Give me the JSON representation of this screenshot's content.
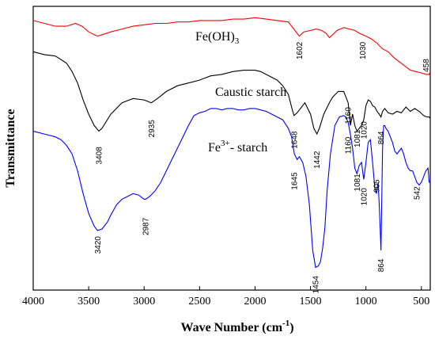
{
  "chart_data": {
    "type": "line",
    "xlabel": "Wave Number (cm",
    "xlabel_sup": "-1",
    "xlabel_close": ")",
    "ylabel": "Transmittance",
    "xlim": [
      4000,
      420
    ],
    "x_reversed": true,
    "x_ticks": [
      4000,
      3500,
      3000,
      2500,
      2000,
      1500,
      1000,
      500
    ],
    "grid": false,
    "series": [
      {
        "name": "Fe(OH)3",
        "label_main": "Fe(OH)",
        "label_sub": "3",
        "color": "#ff0000",
        "x": [
          4000,
          3900,
          3800,
          3700,
          3620,
          3560,
          3500,
          3450,
          3420,
          3380,
          3300,
          3200,
          3100,
          3000,
          2900,
          2800,
          2700,
          2600,
          2500,
          2400,
          2300,
          2200,
          2100,
          2000,
          1900,
          1800,
          1700,
          1650,
          1602,
          1560,
          1500,
          1450,
          1400,
          1360,
          1330,
          1300,
          1260,
          1200,
          1150,
          1100,
          1060,
          1030,
          1000,
          950,
          900,
          850,
          800,
          750,
          700,
          650,
          600,
          550,
          500,
          458,
          430,
          420
        ],
        "y": [
          95,
          94,
          93,
          93,
          94,
          93,
          91,
          90,
          89.5,
          90,
          91,
          92,
          93,
          93.5,
          94,
          94,
          94.5,
          94.5,
          95,
          95,
          95,
          95.5,
          95.5,
          96,
          95.5,
          95,
          94.5,
          92,
          89.5,
          91,
          91.5,
          92,
          91.5,
          90.5,
          89,
          90,
          91.5,
          92.5,
          92,
          91.5,
          90.5,
          90,
          89.5,
          88.5,
          87,
          85,
          84,
          82,
          80.5,
          79,
          77.5,
          77,
          76.5,
          76,
          76,
          77
        ]
      },
      {
        "name": "Caustic starch",
        "label_main": "Caustic starch",
        "color": "#000000",
        "x": [
          4000,
          3900,
          3800,
          3700,
          3650,
          3600,
          3550,
          3500,
          3450,
          3408,
          3380,
          3300,
          3200,
          3100,
          3000,
          2935,
          2880,
          2800,
          2700,
          2600,
          2500,
          2400,
          2300,
          2200,
          2100,
          2000,
          1950,
          1900,
          1850,
          1800,
          1750,
          1700,
          1660,
          1648,
          1620,
          1600,
          1550,
          1500,
          1470,
          1442,
          1420,
          1380,
          1330,
          1300,
          1250,
          1200,
          1160,
          1140,
          1120,
          1100,
          1081,
          1060,
          1040,
          1020,
          1000,
          980,
          960,
          940,
          920,
          900,
          880,
          864,
          850,
          830,
          800,
          760,
          720,
          680,
          640,
          600,
          560,
          520,
          480,
          450,
          430,
          420
        ],
        "y": [
          84,
          83,
          82.5,
          80,
          77,
          73,
          67,
          62,
          58,
          56,
          57,
          62,
          66,
          67.5,
          67,
          66,
          67.5,
          70,
          72,
          73,
          74,
          75.5,
          76,
          77,
          77.5,
          77.5,
          77,
          76,
          75,
          74,
          72,
          69,
          63,
          61.5,
          62.5,
          63.5,
          66,
          62,
          57,
          55,
          57,
          62,
          66,
          68,
          70,
          70,
          66,
          58,
          62,
          58,
          56,
          57,
          58,
          60,
          65,
          67,
          66.5,
          65,
          64.5,
          63,
          62,
          61,
          63,
          64,
          62.5,
          62,
          63,
          62.5,
          64.5,
          63,
          64,
          63,
          61.5,
          61,
          61,
          60.5
        ]
      },
      {
        "name": "Fe3+- starch",
        "label_main": "Fe",
        "label_sup": "3+",
        "label_tail": "- starch",
        "color": "#0000ff",
        "x": [
          4000,
          3950,
          3900,
          3850,
          3800,
          3750,
          3700,
          3650,
          3600,
          3550,
          3500,
          3450,
          3420,
          3380,
          3330,
          3300,
          3250,
          3200,
          3150,
          3100,
          3050,
          3000,
          2987,
          2950,
          2900,
          2850,
          2800,
          2750,
          2700,
          2650,
          2600,
          2550,
          2500,
          2450,
          2400,
          2350,
          2300,
          2250,
          2200,
          2150,
          2100,
          2050,
          2000,
          1950,
          1900,
          1850,
          1800,
          1750,
          1700,
          1670,
          1645,
          1620,
          1600,
          1570,
          1540,
          1510,
          1480,
          1454,
          1430,
          1410,
          1390,
          1370,
          1350,
          1320,
          1280,
          1240,
          1200,
          1180,
          1160,
          1140,
          1120,
          1100,
          1081,
          1060,
          1040,
          1020,
          1000,
          980,
          960,
          940,
          920,
          905,
          890,
          880,
          870,
          864,
          858,
          850,
          840,
          830,
          820,
          800,
          780,
          760,
          740,
          720,
          700,
          680,
          660,
          640,
          620,
          600,
          580,
          560,
          542,
          520,
          500,
          480,
          460,
          440,
          430,
          420
        ],
        "y": [
          56,
          55.5,
          55,
          54.5,
          54,
          53,
          51,
          48,
          42,
          34,
          27,
          22.5,
          21,
          21.5,
          24,
          26.5,
          30,
          32,
          33,
          34,
          33.5,
          32,
          32,
          33,
          35,
          38,
          42,
          46,
          50,
          54,
          58,
          61.5,
          62.5,
          63,
          64,
          64,
          63.5,
          64,
          64,
          63.5,
          63.5,
          64,
          64,
          63.5,
          63,
          62,
          61,
          60,
          57,
          54,
          48,
          46,
          47,
          45,
          40,
          30,
          14,
          8,
          8.5,
          10,
          15,
          22,
          35,
          48,
          58,
          61,
          61.5,
          61,
          59,
          55,
          50,
          43,
          41,
          44,
          45,
          39,
          45,
          52,
          53,
          45,
          36,
          34,
          38,
          30,
          20,
          14,
          30,
          50,
          58,
          58,
          57,
          56,
          54,
          52,
          49,
          48,
          49,
          50,
          48,
          45,
          43,
          42,
          42,
          40,
          38,
          37,
          38,
          40,
          42,
          43,
          38,
          38
        ]
      }
    ],
    "annotations": [
      {
        "text": "1602",
        "series": 0,
        "x": 1602,
        "y": 87.5,
        "rotate": -90
      },
      {
        "text": "1030",
        "series": 0,
        "x": 1030,
        "y": 87.5,
        "rotate": -90
      },
      {
        "text": "458",
        "series": 0,
        "x": 458,
        "y": 81.5,
        "rotate": -90
      },
      {
        "text": "3408",
        "series": 1,
        "x": 3408,
        "y": 50.5,
        "rotate": -90
      },
      {
        "text": "2935",
        "series": 1,
        "x": 2935,
        "y": 60,
        "rotate": -90
      },
      {
        "text": "1648",
        "series": 1,
        "x": 1648,
        "y": 56,
        "rotate": -90
      },
      {
        "text": "1442",
        "series": 1,
        "x": 1442,
        "y": 49,
        "rotate": -90
      },
      {
        "text": "1160",
        "series": 1,
        "x": 1160,
        "y": 64.5,
        "rotate": -90
      },
      {
        "text": "1081",
        "series": 1,
        "x": 1081,
        "y": 56.5,
        "rotate": -90
      },
      {
        "text": "1020",
        "series": 1,
        "x": 1020,
        "y": 59.5,
        "rotate": -90
      },
      {
        "text": "864",
        "series": 1,
        "x": 864,
        "y": 56,
        "rotate": -90
      },
      {
        "text": "3420",
        "series": 2,
        "x": 3420,
        "y": 19,
        "rotate": -90
      },
      {
        "text": "2987",
        "series": 2,
        "x": 2987,
        "y": 25.5,
        "rotate": -90
      },
      {
        "text": "1645",
        "series": 2,
        "x": 1645,
        "y": 41.5,
        "rotate": -90
      },
      {
        "text": "1454",
        "series": 2,
        "x": 1454,
        "y": 5,
        "rotate": -90
      },
      {
        "text": "1160",
        "series": 2,
        "x": 1160,
        "y": 54,
        "rotate": -90
      },
      {
        "text": "1081",
        "series": 2,
        "x": 1081,
        "y": 41,
        "rotate": -90
      },
      {
        "text": "1020",
        "series": 2,
        "x": 1020,
        "y": 36,
        "rotate": -90
      },
      {
        "text": "905",
        "series": 2,
        "x": 905,
        "y": 39,
        "rotate": -90
      },
      {
        "text": "864",
        "series": 2,
        "x": 864,
        "y": 11,
        "rotate": -90
      },
      {
        "text": "542",
        "series": 2,
        "x": 542,
        "y": 36.5,
        "rotate": -90
      }
    ]
  }
}
